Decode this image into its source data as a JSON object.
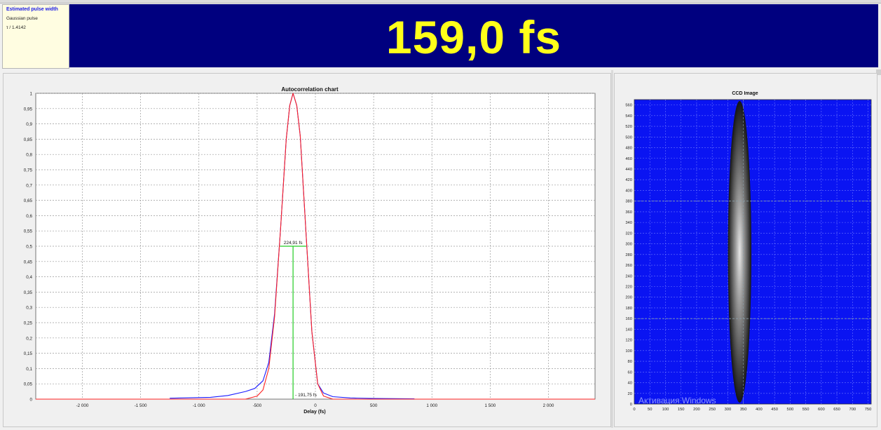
{
  "info": {
    "title": "Estimated pulse width",
    "pulse_shape": "Gaussian pulse",
    "factor": "τ / 1.4142"
  },
  "banner": {
    "value": "159,0 fs",
    "bg_color": "#00007f",
    "text_color": "#ffff1a"
  },
  "autocorr": {
    "title": "Autocorrelation chart",
    "xlabel": "Delay (fs)",
    "fwhm_label": "224,91 fs",
    "peak_label": "- 191,75 fs",
    "xticks": [
      "-2 000",
      "-1 500",
      "-1 000",
      "-500",
      "0",
      "500",
      "1 000",
      "1 500",
      "2 000"
    ],
    "yticks": [
      "0",
      "0,05",
      "0,1",
      "0,15",
      "0,2",
      "0,25",
      "0,3",
      "0,35",
      "0,4",
      "0,45",
      "0,5",
      "0,55",
      "0,6",
      "0,65",
      "0,7",
      "0,75",
      "0,8",
      "0,85",
      "0,9",
      "0,95",
      "1"
    ]
  },
  "ccd": {
    "title": "CCD Image",
    "xticks": [
      "0",
      "50",
      "100",
      "150",
      "200",
      "250",
      "300",
      "350",
      "400",
      "450",
      "500",
      "550",
      "600",
      "650",
      "700",
      "750"
    ],
    "yticks": [
      "0",
      "20",
      "40",
      "60",
      "80",
      "100",
      "120",
      "140",
      "160",
      "180",
      "200",
      "220",
      "240",
      "260",
      "280",
      "300",
      "320",
      "340",
      "360",
      "380",
      "400",
      "420",
      "440",
      "460",
      "480",
      "500",
      "520",
      "540",
      "560"
    ],
    "watermark": "Активация Windows",
    "bg_color": "#0a14f2"
  },
  "chart_data": [
    {
      "type": "line",
      "title": "Autocorrelation chart",
      "xlabel": "Delay (fs)",
      "ylabel": "",
      "xlim": [
        -2400,
        2400
      ],
      "ylim": [
        0,
        1
      ],
      "grid": true,
      "series": [
        {
          "color": "#1a1aff",
          "x": [
            -1250,
            -900,
            -750,
            -600,
            -520,
            -450,
            -400,
            -350,
            -300,
            -250,
            -220,
            -191.75,
            -160,
            -130,
            -80,
            -30,
            20,
            70,
            150,
            300,
            500,
            850
          ],
          "y": [
            0.003,
            0.006,
            0.012,
            0.025,
            0.035,
            0.06,
            0.12,
            0.28,
            0.55,
            0.85,
            0.96,
            1.0,
            0.96,
            0.86,
            0.54,
            0.22,
            0.05,
            0.02,
            0.008,
            0.004,
            0.002,
            0.001
          ]
        },
        {
          "color": "#ff2020",
          "x": [
            -2400,
            -600,
            -500,
            -450,
            -400,
            -350,
            -300,
            -250,
            -220,
            -191.75,
            -160,
            -130,
            -80,
            -30,
            20,
            70,
            150,
            2400
          ],
          "y": [
            0,
            0.0,
            0.01,
            0.03,
            0.1,
            0.27,
            0.55,
            0.85,
            0.96,
            1.0,
            0.96,
            0.86,
            0.54,
            0.22,
            0.05,
            0.01,
            0.0,
            0
          ]
        }
      ],
      "annotations": [
        {
          "text": "224,91 fs",
          "x1": -304,
          "x2": -79,
          "y": 0.5
        },
        {
          "text": "- 191,75 fs",
          "x": -191.75,
          "y": 0
        }
      ]
    },
    {
      "type": "heatmap",
      "title": "CCD Image",
      "xlim": [
        0,
        760
      ],
      "ylim": [
        0,
        570
      ],
      "grid": true,
      "beam_center": {
        "x": 338,
        "y": 285
      },
      "beam_extent": {
        "x": [
          300,
          375
        ],
        "y": [
          0,
          565
        ]
      },
      "markers": {
        "y_lines": [
          160,
          380
        ],
        "x_lines": [
          350
        ]
      }
    }
  ]
}
